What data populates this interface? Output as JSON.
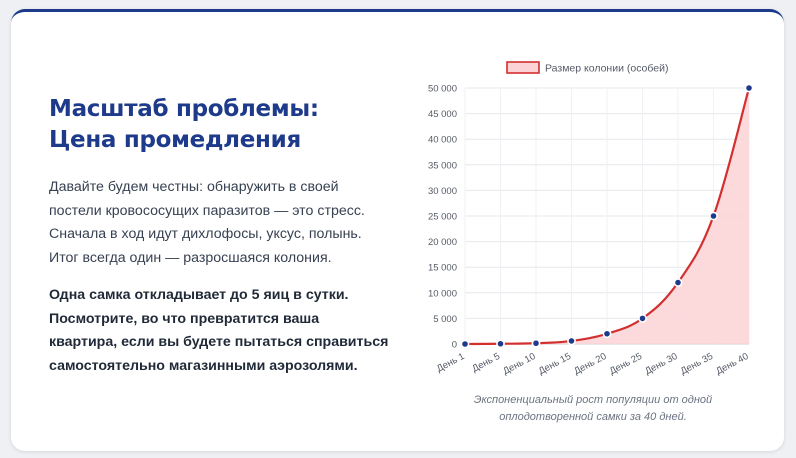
{
  "heading": {
    "lines": [
      "Масштаб проблемы:",
      "Цена промедления"
    ]
  },
  "intro": {
    "lines": [
      "Давайте будем честны: обнаружить в своей",
      "постели кровососущих паразитов — это стресс.",
      "Сначала в ход идут дихлофосы, уксус, полынь.",
      "Итог всегда один — разросшаяся колония."
    ]
  },
  "emphasis": {
    "lines": [
      "Одна самка откладывает до 5 яиц в сутки.",
      "Посмотрите, во что превратится ваша",
      "квартира, если вы будете пытаться справиться",
      "самостоятельно магазинными аэрозолями."
    ]
  },
  "chart_data": {
    "type": "area",
    "categories": [
      "День 1",
      "День 5",
      "День 10",
      "День 15",
      "День 20",
      "День 25",
      "День 30",
      "День 35",
      "День 40"
    ],
    "series": [
      {
        "name": "Размер колонии (особей)",
        "values": [
          2,
          50,
          150,
          600,
          2000,
          5000,
          12000,
          25000,
          50000
        ]
      }
    ],
    "ylim": [
      0,
      50000
    ],
    "y_ticks": [
      "0",
      "5 000",
      "10 000",
      "15 000",
      "20 000",
      "25 000",
      "30 000",
      "35 000",
      "40 000",
      "45 000",
      "50 000"
    ],
    "legend_position": "top",
    "grid": true,
    "colors": {
      "line": "#d32f2f",
      "fill": "#fbd3d6",
      "point": "#1e3a8a"
    }
  },
  "caption": {
    "lines": [
      "Экспоненциальный рост популяции от одной",
      "оплодотворенной самки за 40 дней."
    ]
  }
}
